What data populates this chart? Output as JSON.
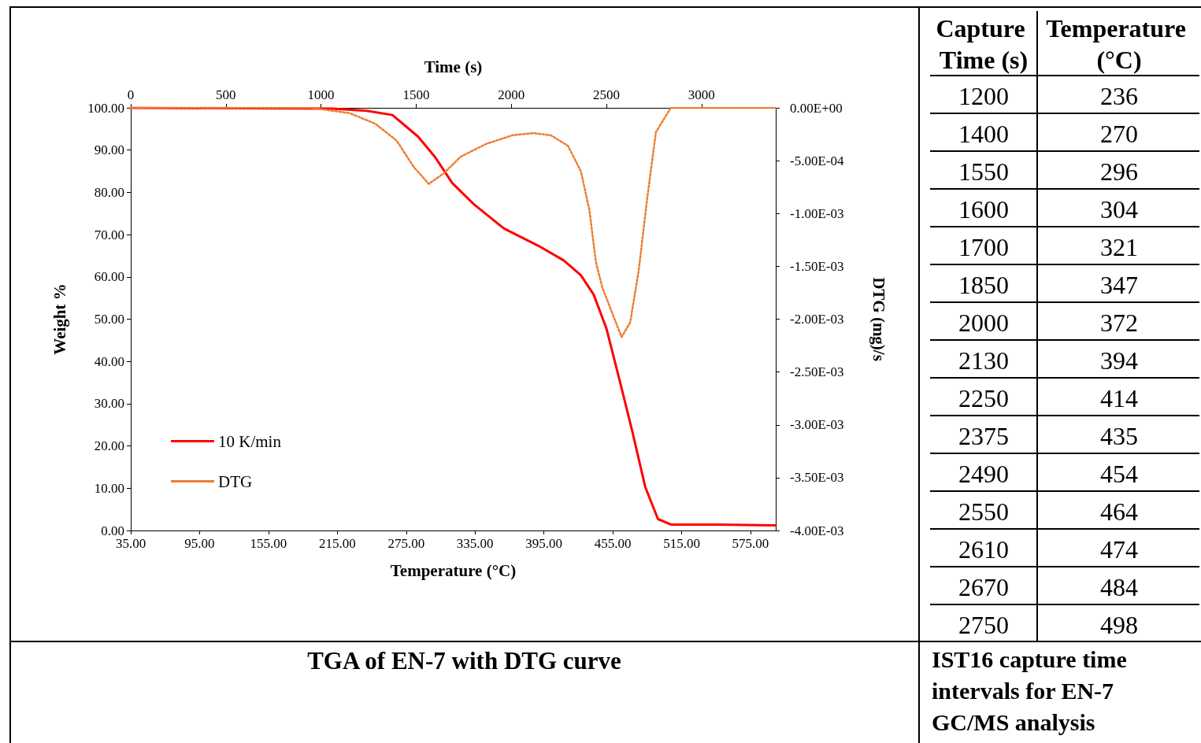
{
  "chart_data": [
    {
      "type": "line",
      "title": "TGA of EN-7 with DTG curve",
      "xlabel": "Temperature (°C)",
      "ylabel": "Weight %",
      "y2label": "DTG (mg)/s",
      "x2label": "Time (s)",
      "xlim": [
        35,
        597
      ],
      "xticks": [
        {
          "value": 35,
          "label": "35.00"
        },
        {
          "value": 95,
          "label": "95.00"
        },
        {
          "value": 155,
          "label": "155.00"
        },
        {
          "value": 215,
          "label": "215.00"
        },
        {
          "value": 275,
          "label": "275.00"
        },
        {
          "value": 335,
          "label": "335.00"
        },
        {
          "value": 395,
          "label": "395.00"
        },
        {
          "value": 455,
          "label": "455.00"
        },
        {
          "value": 515,
          "label": "515.00"
        },
        {
          "value": 575,
          "label": "575.00"
        }
      ],
      "x2lim": [
        0,
        3390
      ],
      "x2ticks": [
        0,
        500,
        1000,
        1500,
        2000,
        2500,
        3000
      ],
      "ylim": [
        0,
        100
      ],
      "yticks": [
        {
          "value": 0,
          "label": "0.00"
        },
        {
          "value": 10,
          "label": "10.00"
        },
        {
          "value": 20,
          "label": "20.00"
        },
        {
          "value": 30,
          "label": "30.00"
        },
        {
          "value": 40,
          "label": "40.00"
        },
        {
          "value": 50,
          "label": "50.00"
        },
        {
          "value": 60,
          "label": "60.00"
        },
        {
          "value": 70,
          "label": "70.00"
        },
        {
          "value": 80,
          "label": "80.00"
        },
        {
          "value": 90,
          "label": "90.00"
        },
        {
          "value": 100,
          "label": "100.00"
        }
      ],
      "y2lim": [
        -0.004,
        0
      ],
      "y2ticks": [
        {
          "value": 0,
          "label": "0.00E+00"
        },
        {
          "value": -0.0005,
          "label": "-5.00E-04"
        },
        {
          "value": -0.001,
          "label": "-1.00E-03"
        },
        {
          "value": -0.0015,
          "label": "-1.50E-03"
        },
        {
          "value": -0.002,
          "label": "-2.00E-03"
        },
        {
          "value": -0.0025,
          "label": "-2.50E-03"
        },
        {
          "value": -0.003,
          "label": "-3.00E-03"
        },
        {
          "value": -0.0035,
          "label": "-3.50E-03"
        },
        {
          "value": -0.004,
          "label": "-4.00E-03"
        }
      ],
      "legend": "bottom left",
      "marker": "none",
      "series": [
        {
          "name": "10 K/min",
          "color": "#ff0000",
          "line_style": "solid",
          "x": [
            35,
            210.7,
            240.5,
            263,
            285.3,
            300.3,
            315.2,
            333.9,
            360,
            389.9,
            412.3,
            427.2,
            438.4,
            449.6,
            460.9,
            472,
            483.3,
            494.4,
            505.6,
            546.7,
            597
          ],
          "values": [
            100,
            99.8,
            99.3,
            98.3,
            93.2,
            88.3,
            82.2,
            77.2,
            71.5,
            67.4,
            63.9,
            60.4,
            55.8,
            47.7,
            35.6,
            23.5,
            10.3,
            2.7,
            1.4,
            1.4,
            1.2
          ]
        },
        {
          "name": "DTG",
          "color": "#ed7d31",
          "line_style": "dotted",
          "axis": "y2",
          "x": [
            35,
            192,
            225.6,
            248,
            266.7,
            281.6,
            294.7,
            307.8,
            322.7,
            345.1,
            367.5,
            386.2,
            401.1,
            416,
            427.2,
            434.7,
            440.3,
            445.9,
            453.4,
            462.7,
            470.2,
            477.6,
            485.1,
            492.6,
            505.6,
            546.7,
            597
          ],
          "values": [
            0,
            0,
            -5e-05,
            -0.00015,
            -0.00031,
            -0.00056,
            -0.00072,
            -0.00062,
            -0.00046,
            -0.00034,
            -0.00026,
            -0.00024,
            -0.00026,
            -0.00036,
            -0.0006,
            -0.00097,
            -0.00146,
            -0.0017,
            -0.00191,
            -0.00217,
            -0.00203,
            -0.00154,
            -0.00085,
            -0.00023,
            0,
            0,
            0
          ]
        }
      ]
    },
    {
      "type": "other",
      "title": "IST16 capture time intervals for EN-7 GC/MS analysis",
      "data_labels": true,
      "xlabel": "Capture Time (s)",
      "ylabel": "Temperature (°C)",
      "categories": [
        "1200",
        "1400",
        "1550",
        "1600",
        "1700",
        "1850",
        "2000",
        "2130",
        "2250",
        "2375",
        "2490",
        "2550",
        "2610",
        "2670",
        "2750"
      ],
      "values": [
        236,
        270,
        296,
        304,
        321,
        347,
        372,
        394,
        414,
        435,
        454,
        464,
        474,
        484,
        498
      ]
    }
  ]
}
